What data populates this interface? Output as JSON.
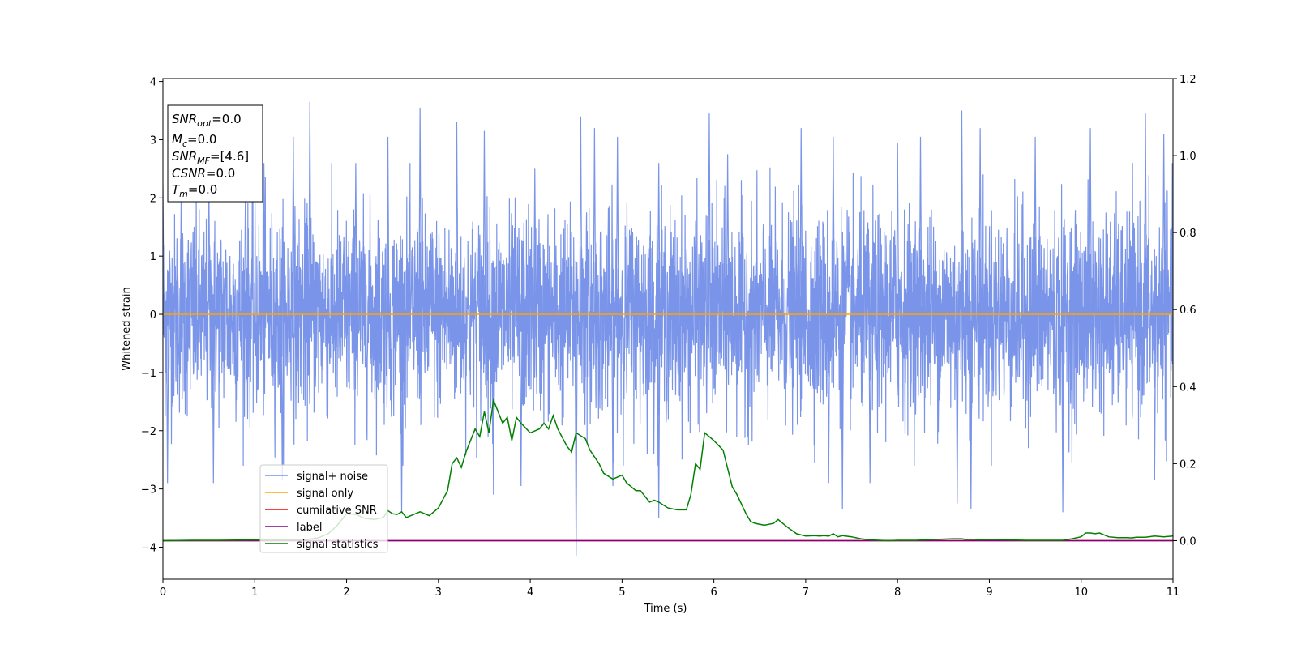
{
  "chart_data": {
    "type": "line",
    "xlabel": "Time (s)",
    "ylabel": "Whitened strain",
    "xlim": [
      0,
      11
    ],
    "ylim": [
      -4.55,
      4.05
    ],
    "y2lim": [
      -0.1,
      1.2
    ],
    "xticks": [
      0,
      1,
      2,
      3,
      4,
      5,
      6,
      7,
      8,
      9,
      10,
      11
    ],
    "yticks": [
      -4,
      -3,
      -2,
      -1,
      0,
      1,
      2,
      3,
      4
    ],
    "y2ticks": [
      0.0,
      0.2,
      0.4,
      0.6,
      0.8,
      1.0,
      1.2
    ],
    "grid": false,
    "legend_position": "lower-left",
    "series": [
      {
        "name": "signal+ noise",
        "axis": "left",
        "color": "#7994e8",
        "kind": "noise",
        "sigma": 0.85,
        "spike_peaks": [
          {
            "x": 0.0,
            "y": 2.2
          },
          {
            "x": 0.2,
            "y": 2.3
          },
          {
            "x": 0.5,
            "y": 2.4
          },
          {
            "x": 0.9,
            "y": 2.5
          },
          {
            "x": 1.1,
            "y": 2.6
          },
          {
            "x": 1.42,
            "y": 3.05
          },
          {
            "x": 1.6,
            "y": 3.65
          },
          {
            "x": 2.1,
            "y": 2.6
          },
          {
            "x": 2.45,
            "y": 3.05
          },
          {
            "x": 2.8,
            "y": 3.55
          },
          {
            "x": 3.2,
            "y": 3.3
          },
          {
            "x": 3.5,
            "y": 3.15
          },
          {
            "x": 4.05,
            "y": 2.5
          },
          {
            "x": 4.55,
            "y": 3.4
          },
          {
            "x": 4.7,
            "y": 3.2
          },
          {
            "x": 4.95,
            "y": 3.05
          },
          {
            "x": 5.4,
            "y": 2.6
          },
          {
            "x": 5.95,
            "y": 3.45
          },
          {
            "x": 6.15,
            "y": 2.75
          },
          {
            "x": 6.95,
            "y": 3.2
          },
          {
            "x": 7.3,
            "y": 3.05
          },
          {
            "x": 8.0,
            "y": 2.95
          },
          {
            "x": 8.25,
            "y": 3.05
          },
          {
            "x": 8.7,
            "y": 3.5
          },
          {
            "x": 8.9,
            "y": 3.2
          },
          {
            "x": 9.5,
            "y": 3.05
          },
          {
            "x": 10.1,
            "y": 3.2
          },
          {
            "x": 10.7,
            "y": 3.45
          },
          {
            "x": 10.9,
            "y": 3.1
          },
          {
            "x": 0.05,
            "y": -2.9
          },
          {
            "x": 0.55,
            "y": -2.9
          },
          {
            "x": 1.3,
            "y": -2.85
          },
          {
            "x": 2.6,
            "y": -3.4
          },
          {
            "x": 3.6,
            "y": -3.1
          },
          {
            "x": 3.9,
            "y": -2.95
          },
          {
            "x": 4.5,
            "y": -4.15
          },
          {
            "x": 4.9,
            "y": -2.95
          },
          {
            "x": 5.4,
            "y": -3.5
          },
          {
            "x": 7.25,
            "y": -2.9
          },
          {
            "x": 7.4,
            "y": -3.35
          },
          {
            "x": 7.7,
            "y": -2.9
          },
          {
            "x": 8.65,
            "y": -3.25
          },
          {
            "x": 8.8,
            "y": -3.35
          },
          {
            "x": 9.8,
            "y": -3.4
          },
          {
            "x": 10.8,
            "y": -2.85
          }
        ]
      },
      {
        "name": "signal only",
        "axis": "left",
        "color": "#ffa500",
        "x": [
          0,
          11
        ],
        "y": [
          0,
          0
        ]
      },
      {
        "name": "cumilative SNR",
        "axis": "right",
        "color": "#ff0000",
        "x": [
          0,
          11
        ],
        "y": [
          0,
          0
        ]
      },
      {
        "name": "label",
        "axis": "right",
        "color": "#800080",
        "x": [
          0,
          11
        ],
        "y": [
          0,
          0
        ]
      },
      {
        "name": "signal statistics",
        "axis": "right",
        "color": "#008000",
        "x": [
          0,
          0.3,
          0.6,
          1.0,
          1.3,
          1.5,
          1.6,
          1.7,
          1.8,
          1.9,
          2.0,
          2.1,
          2.2,
          2.3,
          2.4,
          2.45,
          2.5,
          2.55,
          2.6,
          2.65,
          2.7,
          2.8,
          2.9,
          3.0,
          3.1,
          3.15,
          3.2,
          3.25,
          3.3,
          3.4,
          3.45,
          3.5,
          3.55,
          3.6,
          3.65,
          3.7,
          3.75,
          3.8,
          3.85,
          3.9,
          4.0,
          4.1,
          4.15,
          4.2,
          4.25,
          4.3,
          4.4,
          4.45,
          4.5,
          4.6,
          4.65,
          4.75,
          4.8,
          4.9,
          5.0,
          5.05,
          5.1,
          5.15,
          5.2,
          5.3,
          5.35,
          5.4,
          5.5,
          5.6,
          5.7,
          5.75,
          5.8,
          5.85,
          5.9,
          5.95,
          6.0,
          6.1,
          6.2,
          6.25,
          6.35,
          6.4,
          6.45,
          6.55,
          6.65,
          6.7,
          6.8,
          6.9,
          7.0,
          7.1,
          7.15,
          7.2,
          7.25,
          7.3,
          7.35,
          7.4,
          7.5,
          7.6,
          7.7,
          7.8,
          7.9,
          8.0,
          8.2,
          8.4,
          8.6,
          8.65,
          8.7,
          8.75,
          8.8,
          8.9,
          9.0,
          9.2,
          9.4,
          9.6,
          9.8,
          9.9,
          10.0,
          10.05,
          10.1,
          10.15,
          10.2,
          10.3,
          10.4,
          10.5,
          10.55,
          10.6,
          10.7,
          10.8,
          10.9,
          11.0
        ],
        "y": [
          0.0,
          0.001,
          0.001,
          0.002,
          0.002,
          0.003,
          0.004,
          0.008,
          0.018,
          0.04,
          0.07,
          0.068,
          0.058,
          0.055,
          0.06,
          0.078,
          0.07,
          0.068,
          0.075,
          0.06,
          0.065,
          0.075,
          0.065,
          0.085,
          0.13,
          0.2,
          0.215,
          0.19,
          0.23,
          0.29,
          0.27,
          0.335,
          0.28,
          0.365,
          0.335,
          0.305,
          0.32,
          0.26,
          0.32,
          0.305,
          0.28,
          0.29,
          0.305,
          0.29,
          0.325,
          0.29,
          0.245,
          0.23,
          0.28,
          0.265,
          0.235,
          0.2,
          0.175,
          0.16,
          0.17,
          0.15,
          0.14,
          0.13,
          0.13,
          0.1,
          0.105,
          0.1,
          0.085,
          0.08,
          0.08,
          0.12,
          0.2,
          0.185,
          0.28,
          0.27,
          0.26,
          0.235,
          0.14,
          0.12,
          0.07,
          0.05,
          0.045,
          0.04,
          0.045,
          0.055,
          0.035,
          0.018,
          0.012,
          0.013,
          0.012,
          0.013,
          0.012,
          0.018,
          0.01,
          0.013,
          0.01,
          0.005,
          0.002,
          0.001,
          0.0,
          0.001,
          0.001,
          0.003,
          0.005,
          0.005,
          0.005,
          0.003,
          0.004,
          0.002,
          0.003,
          0.002,
          0.001,
          0.001,
          0.001,
          0.005,
          0.01,
          0.02,
          0.02,
          0.018,
          0.02,
          0.01,
          0.008,
          0.008,
          0.007,
          0.009,
          0.009,
          0.012,
          0.01,
          0.012
        ]
      }
    ]
  },
  "info_box": {
    "snr_opt": {
      "base": "SNR",
      "sub": "opt",
      "value": "=0.0"
    },
    "mc": {
      "base": "M",
      "sub": "c",
      "value": "=0.0"
    },
    "snr_mf": {
      "base": "SNR",
      "sub": "MF",
      "value": "=[4.6]"
    },
    "csnr": {
      "base": "CSNR",
      "value": "=0.0"
    },
    "tm": {
      "base": "T",
      "sub": "m",
      "value": "=0.0"
    }
  }
}
